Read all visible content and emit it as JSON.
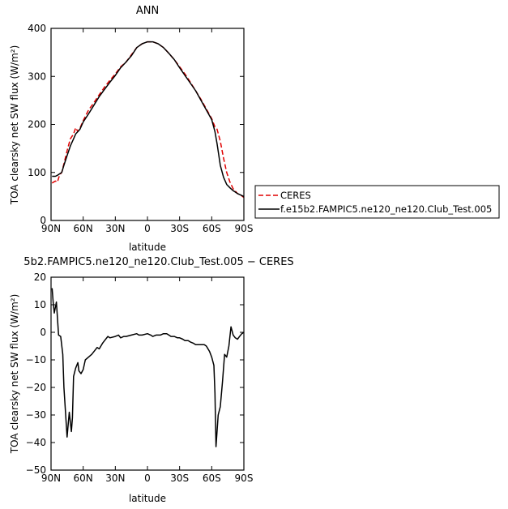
{
  "chart_data": [
    {
      "type": "line",
      "title": "ANN",
      "xlabel": "latitude",
      "ylabel": "TOA clearsky net SW flux (W/m²)",
      "xlim": [
        90,
        -90
      ],
      "ylim": [
        0,
        400
      ],
      "x_ticks": [
        {
          "value": 90,
          "label": "90N"
        },
        {
          "value": 60,
          "label": "60N"
        },
        {
          "value": 30,
          "label": "30N"
        },
        {
          "value": 0,
          "label": "0"
        },
        {
          "value": -30,
          "label": "30S"
        },
        {
          "value": -60,
          "label": "60S"
        },
        {
          "value": -90,
          "label": "90S"
        }
      ],
      "y_ticks": [
        {
          "value": 0,
          "label": "0"
        },
        {
          "value": 100,
          "label": "100"
        },
        {
          "value": 200,
          "label": "200"
        },
        {
          "value": 300,
          "label": "300"
        },
        {
          "value": 400,
          "label": "400"
        }
      ],
      "legend_position": "right",
      "series": [
        {
          "name": "CERES",
          "color": "#e00000",
          "dash": "dashed",
          "points": [
            [
              89,
              78
            ],
            [
              86,
              82
            ],
            [
              84,
              80
            ],
            [
              82,
              95
            ],
            [
              80,
              100
            ],
            [
              78,
              118
            ],
            [
              75,
              145
            ],
            [
              72,
              170
            ],
            [
              69,
              180
            ],
            [
              67,
              193
            ],
            [
              65,
              185
            ],
            [
              63,
              192
            ],
            [
              60,
              208
            ],
            [
              55,
              230
            ],
            [
              50,
              245
            ],
            [
              45,
              262
            ],
            [
              40,
              278
            ],
            [
              35,
              292
            ],
            [
              30,
              305
            ],
            [
              25,
              320
            ],
            [
              20,
              330
            ],
            [
              15,
              345
            ],
            [
              10,
              360
            ],
            [
              5,
              368
            ],
            [
              0,
              372
            ],
            [
              -5,
              372
            ],
            [
              -10,
              368
            ],
            [
              -15,
              360
            ],
            [
              -20,
              348
            ],
            [
              -25,
              335
            ],
            [
              -30,
              320
            ],
            [
              -35,
              305
            ],
            [
              -40,
              288
            ],
            [
              -45,
              270
            ],
            [
              -50,
              252
            ],
            [
              -55,
              232
            ],
            [
              -60,
              212
            ],
            [
              -63,
              195
            ],
            [
              -65,
              190
            ],
            [
              -68,
              165
            ],
            [
              -71,
              130
            ],
            [
              -74,
              100
            ],
            [
              -77,
              80
            ],
            [
              -80,
              66
            ],
            [
              -84,
              56
            ],
            [
              -87,
              53
            ],
            [
              -90,
              48
            ]
          ]
        },
        {
          "name": "f.e15b2.FAMPIC5.ne120_ne120.Club_Test.005",
          "color": "#000000",
          "dash": "solid",
          "points": [
            [
              89,
              92
            ],
            [
              86,
              92
            ],
            [
              84,
              94
            ],
            [
              82,
              97
            ],
            [
              80,
              100
            ],
            [
              78,
              115
            ],
            [
              75,
              135
            ],
            [
              72,
              155
            ],
            [
              69,
              170
            ],
            [
              67,
              180
            ],
            [
              65,
              185
            ],
            [
              63,
              190
            ],
            [
              60,
              205
            ],
            [
              55,
              222
            ],
            [
              50,
              240
            ],
            [
              45,
              258
            ],
            [
              40,
              273
            ],
            [
              35,
              288
            ],
            [
              30,
              302
            ],
            [
              25,
              318
            ],
            [
              20,
              330
            ],
            [
              15,
              343
            ],
            [
              10,
              360
            ],
            [
              5,
              368
            ],
            [
              0,
              372
            ],
            [
              -5,
              372
            ],
            [
              -10,
              368
            ],
            [
              -15,
              360
            ],
            [
              -20,
              348
            ],
            [
              -25,
              335
            ],
            [
              -30,
              318
            ],
            [
              -35,
              302
            ],
            [
              -40,
              286
            ],
            [
              -45,
              270
            ],
            [
              -50,
              250
            ],
            [
              -55,
              230
            ],
            [
              -60,
              210
            ],
            [
              -63,
              185
            ],
            [
              -65,
              160
            ],
            [
              -68,
              115
            ],
            [
              -71,
              90
            ],
            [
              -74,
              75
            ],
            [
              -77,
              68
            ],
            [
              -80,
              62
            ],
            [
              -84,
              56
            ],
            [
              -87,
              53
            ],
            [
              -90,
              50
            ]
          ]
        }
      ]
    },
    {
      "type": "line",
      "title": "5b2.FAMPIC5.ne120_ne120.Club_Test.005 − CERES",
      "xlabel": "latitude",
      "ylabel": "TOA clearsky net SW flux (W/m²)",
      "xlim": [
        90,
        -90
      ],
      "ylim": [
        -50,
        20
      ],
      "x_ticks": [
        {
          "value": 90,
          "label": "90N"
        },
        {
          "value": 60,
          "label": "60N"
        },
        {
          "value": 30,
          "label": "30N"
        },
        {
          "value": 0,
          "label": "0"
        },
        {
          "value": -30,
          "label": "30S"
        },
        {
          "value": -60,
          "label": "60S"
        },
        {
          "value": -90,
          "label": "90S"
        }
      ],
      "y_ticks": [
        {
          "value": -50,
          "label": "−50"
        },
        {
          "value": -40,
          "label": "−40"
        },
        {
          "value": -30,
          "label": "−30"
        },
        {
          "value": -20,
          "label": "−20"
        },
        {
          "value": -10,
          "label": "−10"
        },
        {
          "value": 0,
          "label": "0"
        },
        {
          "value": 10,
          "label": "10"
        },
        {
          "value": 20,
          "label": "20"
        }
      ],
      "series": [
        {
          "color": "#000000",
          "dash": "solid",
          "points": [
            [
              89,
              16
            ],
            [
              88,
              11
            ],
            [
              87,
              7
            ],
            [
              85,
              11
            ],
            [
              83,
              -1
            ],
            [
              81,
              -1.5
            ],
            [
              79,
              -8
            ],
            [
              78,
              -20
            ],
            [
              76,
              -32
            ],
            [
              75,
              -38
            ],
            [
              73,
              -29
            ],
            [
              71,
              -36
            ],
            [
              70,
              -31
            ],
            [
              69,
              -16
            ],
            [
              67,
              -13
            ],
            [
              65,
              -11
            ],
            [
              64,
              -14
            ],
            [
              62,
              -15
            ],
            [
              60,
              -13.5
            ],
            [
              58,
              -10
            ],
            [
              55,
              -9
            ],
            [
              52,
              -8
            ],
            [
              50,
              -7
            ],
            [
              47,
              -5.5
            ],
            [
              45,
              -6
            ],
            [
              42,
              -4
            ],
            [
              40,
              -3
            ],
            [
              37,
              -1.5
            ],
            [
              35,
              -2
            ],
            [
              30,
              -1.5
            ],
            [
              27,
              -1
            ],
            [
              25,
              -2
            ],
            [
              22,
              -1.5
            ],
            [
              20,
              -1.5
            ],
            [
              15,
              -1
            ],
            [
              10,
              -0.5
            ],
            [
              8,
              -1
            ],
            [
              5,
              -1
            ],
            [
              0,
              -0.5
            ],
            [
              -3,
              -1
            ],
            [
              -5,
              -1.5
            ],
            [
              -8,
              -1
            ],
            [
              -12,
              -1
            ],
            [
              -15,
              -0.5
            ],
            [
              -18,
              -0.5
            ],
            [
              -20,
              -1
            ],
            [
              -22,
              -1.5
            ],
            [
              -25,
              -1.5
            ],
            [
              -28,
              -2
            ],
            [
              -30,
              -2
            ],
            [
              -33,
              -2.5
            ],
            [
              -35,
              -3
            ],
            [
              -38,
              -3
            ],
            [
              -40,
              -3.5
            ],
            [
              -43,
              -4
            ],
            [
              -45,
              -4.5
            ],
            [
              -50,
              -4.5
            ],
            [
              -53,
              -4.5
            ],
            [
              -55,
              -5
            ],
            [
              -58,
              -7
            ],
            [
              -60,
              -9
            ],
            [
              -62,
              -12
            ],
            [
              -63,
              -22
            ],
            [
              -64,
              -41.5
            ],
            [
              -66,
              -30
            ],
            [
              -68,
              -27
            ],
            [
              -70,
              -18
            ],
            [
              -72,
              -8
            ],
            [
              -74,
              -9
            ],
            [
              -76,
              -5
            ],
            [
              -78,
              2
            ],
            [
              -80,
              -1
            ],
            [
              -82,
              -2
            ],
            [
              -84,
              -2.5
            ],
            [
              -86,
              -1.5
            ],
            [
              -88,
              -0.5
            ],
            [
              -90,
              0
            ]
          ]
        }
      ]
    }
  ]
}
